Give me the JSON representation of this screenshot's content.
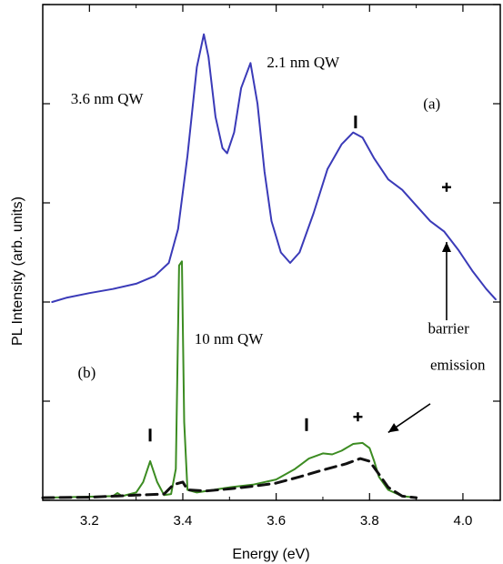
{
  "chart_data": {
    "type": "line",
    "xlabel": "Energy (eV)",
    "ylabel": "PL Intensity (arb. units)",
    "xlim": [
      3.1,
      4.08
    ],
    "ylim": [
      0,
      9.5
    ],
    "x_ticks": [
      3.2,
      3.4,
      3.6,
      3.8,
      4.0
    ],
    "x_tick_labels": [
      "3.2",
      "3.4",
      "3.6",
      "3.8",
      "4.0"
    ],
    "y_ticks": [
      0.0,
      1.9,
      3.8,
      5.7,
      7.6,
      9.5
    ],
    "y_tick_labels_visible": false,
    "grid": false,
    "legend": "none",
    "series": [
      {
        "color": "#3a3ab8",
        "style": "solid",
        "points": [
          [
            3.12,
            3.8
          ],
          [
            3.15,
            3.88
          ],
          [
            3.2,
            3.97
          ],
          [
            3.25,
            4.05
          ],
          [
            3.3,
            4.15
          ],
          [
            3.34,
            4.3
          ],
          [
            3.37,
            4.55
          ],
          [
            3.39,
            5.2
          ],
          [
            3.41,
            6.6
          ],
          [
            3.43,
            8.3
          ],
          [
            3.445,
            8.93
          ],
          [
            3.455,
            8.5
          ],
          [
            3.47,
            7.35
          ],
          [
            3.485,
            6.75
          ],
          [
            3.495,
            6.65
          ],
          [
            3.51,
            7.05
          ],
          [
            3.525,
            7.9
          ],
          [
            3.545,
            8.38
          ],
          [
            3.56,
            7.6
          ],
          [
            3.575,
            6.3
          ],
          [
            3.59,
            5.35
          ],
          [
            3.61,
            4.75
          ],
          [
            3.63,
            4.55
          ],
          [
            3.65,
            4.75
          ],
          [
            3.68,
            5.5
          ],
          [
            3.71,
            6.35
          ],
          [
            3.74,
            6.82
          ],
          [
            3.765,
            7.05
          ],
          [
            3.785,
            6.95
          ],
          [
            3.81,
            6.55
          ],
          [
            3.84,
            6.15
          ],
          [
            3.87,
            5.95
          ],
          [
            3.9,
            5.65
          ],
          [
            3.93,
            5.35
          ],
          [
            3.96,
            5.15
          ],
          [
            3.99,
            4.8
          ],
          [
            4.02,
            4.4
          ],
          [
            4.05,
            4.05
          ],
          [
            4.07,
            3.85
          ]
        ]
      },
      {
        "color": "#3c8c22",
        "style": "solid",
        "points": [
          [
            3.1,
            0.05
          ],
          [
            3.2,
            0.07
          ],
          [
            3.25,
            0.08
          ],
          [
            3.26,
            0.14
          ],
          [
            3.27,
            0.08
          ],
          [
            3.3,
            0.15
          ],
          [
            3.315,
            0.35
          ],
          [
            3.33,
            0.75
          ],
          [
            3.345,
            0.35
          ],
          [
            3.36,
            0.1
          ],
          [
            3.375,
            0.12
          ],
          [
            3.385,
            0.6
          ],
          [
            3.392,
            4.5
          ],
          [
            3.398,
            4.58
          ],
          [
            3.403,
            1.5
          ],
          [
            3.41,
            0.2
          ],
          [
            3.43,
            0.15
          ],
          [
            3.5,
            0.25
          ],
          [
            3.55,
            0.3
          ],
          [
            3.6,
            0.4
          ],
          [
            3.64,
            0.6
          ],
          [
            3.67,
            0.8
          ],
          [
            3.7,
            0.9
          ],
          [
            3.72,
            0.88
          ],
          [
            3.74,
            0.95
          ],
          [
            3.765,
            1.08
          ],
          [
            3.785,
            1.1
          ],
          [
            3.8,
            1.0
          ],
          [
            3.81,
            0.75
          ],
          [
            3.82,
            0.45
          ],
          [
            3.84,
            0.2
          ],
          [
            3.87,
            0.08
          ],
          [
            3.9,
            0.05
          ]
        ]
      },
      {
        "color": "#111111",
        "style": "dashed",
        "points": [
          [
            3.1,
            0.05
          ],
          [
            3.2,
            0.06
          ],
          [
            3.3,
            0.1
          ],
          [
            3.36,
            0.12
          ],
          [
            3.38,
            0.3
          ],
          [
            3.4,
            0.35
          ],
          [
            3.41,
            0.2
          ],
          [
            3.45,
            0.18
          ],
          [
            3.5,
            0.22
          ],
          [
            3.55,
            0.27
          ],
          [
            3.6,
            0.33
          ],
          [
            3.65,
            0.45
          ],
          [
            3.7,
            0.58
          ],
          [
            3.75,
            0.7
          ],
          [
            3.78,
            0.8
          ],
          [
            3.8,
            0.75
          ],
          [
            3.82,
            0.5
          ],
          [
            3.84,
            0.25
          ],
          [
            3.87,
            0.08
          ],
          [
            3.9,
            0.05
          ]
        ]
      }
    ],
    "annotations": [
      {
        "text": "3.6 nm QW",
        "x": 3.16,
        "y": 7.6
      },
      {
        "text": "2.1 nm QW",
        "x": 3.58,
        "y": 8.3
      },
      {
        "text": "(a)",
        "x": 3.915,
        "y": 7.5
      },
      {
        "text": "10 nm QW",
        "x": 3.425,
        "y": 3.0
      },
      {
        "text": "barrier",
        "x": 3.925,
        "y": 3.2
      },
      {
        "text": "emission",
        "x": 3.93,
        "y": 2.5
      },
      {
        "text": "(b)",
        "x": 3.175,
        "y": 2.35
      }
    ],
    "markers": [
      {
        "symbol": "I",
        "x": 3.77,
        "y": 7.25
      },
      {
        "symbol": "+",
        "x": 3.965,
        "y": 6.0
      },
      {
        "symbol": "I",
        "x": 3.33,
        "y": 1.25
      },
      {
        "symbol": "I",
        "x": 3.665,
        "y": 1.45
      },
      {
        "symbol": "+",
        "x": 3.775,
        "y": 1.6
      }
    ],
    "arrows": [
      {
        "from": [
          3.965,
          3.45
        ],
        "to": [
          3.965,
          4.95
        ]
      },
      {
        "from": [
          3.93,
          1.85
        ],
        "to": [
          3.84,
          1.3
        ]
      }
    ]
  }
}
